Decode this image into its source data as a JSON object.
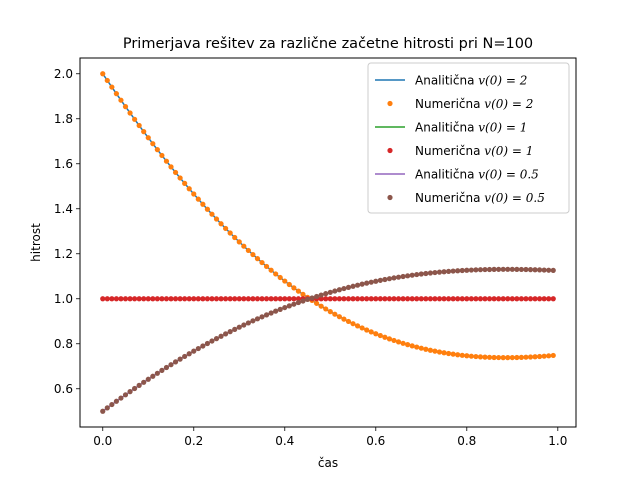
{
  "chart_data": {
    "type": "line",
    "title": "Primerjava rešitev za različne začetne hitrosti pri N=100",
    "xlabel": "čas",
    "ylabel": "hitrost",
    "xlim": [
      -0.05,
      1.04
    ],
    "ylim": [
      0.43,
      2.07
    ],
    "xticks": [
      0.0,
      0.2,
      0.4,
      0.6,
      0.8,
      1.0
    ],
    "xtick_labels": [
      "0.0",
      "0.2",
      "0.4",
      "0.6",
      "0.8",
      "1.0"
    ],
    "yticks": [
      0.6,
      0.8,
      1.0,
      1.2,
      1.4,
      1.6,
      1.8,
      2.0
    ],
    "ytick_labels": [
      "0.6",
      "0.8",
      "1.0",
      "1.2",
      "1.4",
      "1.6",
      "1.8",
      "2.0"
    ],
    "grid": false,
    "legend_position": "top-right",
    "x": {
      "start": 0.0,
      "step": 0.01,
      "count": 100
    },
    "series": [
      {
        "name": "Analitična v(0) = 2",
        "legend_prefix": "Analitična ",
        "legend_math": "v(0) = 2",
        "kind": "line",
        "color": "#1f77b4",
        "v0": 2.0,
        "y": [
          2.0,
          1.9702,
          1.9407,
          1.9115,
          1.8825,
          1.8539,
          1.8256,
          1.7976,
          1.77,
          1.7427,
          1.7157,
          1.6891,
          1.6628,
          1.6369,
          1.6113,
          1.5861,
          1.5613,
          1.5368,
          1.5127,
          1.4889,
          1.4655,
          1.4426,
          1.4199,
          1.3977,
          1.3758,
          1.3543,
          1.3332,
          1.3125,
          1.2922,
          1.2723,
          1.2528,
          1.2336,
          1.2148,
          1.1964,
          1.1784,
          1.1608,
          1.1436,
          1.1268,
          1.1103,
          1.0943,
          1.0786,
          1.0633,
          1.0484,
          1.0339,
          1.0197,
          1.006,
          0.9926,
          0.9796,
          0.967,
          0.9548,
          0.9429,
          0.9314,
          0.9203,
          0.9095,
          0.8992,
          0.8891,
          0.8795,
          0.8702,
          0.8612,
          0.8526,
          0.8444,
          0.8365,
          0.8289,
          0.8217,
          0.8148,
          0.8082,
          0.802,
          0.7961,
          0.7905,
          0.7852,
          0.7802,
          0.7756,
          0.7712,
          0.7672,
          0.7634,
          0.7599,
          0.7567,
          0.7538,
          0.7511,
          0.7487,
          0.7466,
          0.7447,
          0.7431,
          0.7417,
          0.7406,
          0.7397,
          0.739,
          0.7386,
          0.7383,
          0.7383,
          0.7385,
          0.7389,
          0.7394,
          0.7402,
          0.7411,
          0.7422,
          0.7434,
          0.7448,
          0.7463,
          0.748
        ]
      },
      {
        "name": "Numerična v(0) = 2",
        "legend_prefix": "Numerična ",
        "legend_math": "v(0) = 2",
        "kind": "points",
        "color": "#ff7f0e",
        "v0": 2.0,
        "y": [
          2.0,
          1.9702,
          1.9407,
          1.9115,
          1.8825,
          1.8539,
          1.8256,
          1.7976,
          1.77,
          1.7427,
          1.7157,
          1.6891,
          1.6628,
          1.6369,
          1.6113,
          1.5861,
          1.5613,
          1.5368,
          1.5127,
          1.4889,
          1.4655,
          1.4426,
          1.4199,
          1.3977,
          1.3758,
          1.3543,
          1.3332,
          1.3125,
          1.2922,
          1.2723,
          1.2528,
          1.2336,
          1.2148,
          1.1964,
          1.1784,
          1.1608,
          1.1436,
          1.1268,
          1.1103,
          1.0943,
          1.0786,
          1.0633,
          1.0484,
          1.0339,
          1.0197,
          1.006,
          0.9926,
          0.9796,
          0.967,
          0.9548,
          0.9429,
          0.9314,
          0.9203,
          0.9095,
          0.8992,
          0.8891,
          0.8795,
          0.8702,
          0.8612,
          0.8526,
          0.8444,
          0.8365,
          0.8289,
          0.8217,
          0.8148,
          0.8082,
          0.802,
          0.7961,
          0.7905,
          0.7852,
          0.7802,
          0.7756,
          0.7712,
          0.7672,
          0.7634,
          0.7599,
          0.7567,
          0.7538,
          0.7511,
          0.7487,
          0.7466,
          0.7447,
          0.7431,
          0.7417,
          0.7406,
          0.7397,
          0.739,
          0.7386,
          0.7383,
          0.7383,
          0.7385,
          0.7389,
          0.7394,
          0.7402,
          0.7411,
          0.7422,
          0.7434,
          0.7448,
          0.7463,
          0.748
        ]
      },
      {
        "name": "Analitična v(0) = 1",
        "legend_prefix": "Analitična ",
        "legend_math": "v(0) = 1",
        "kind": "line",
        "color": "#2ca02c",
        "v0": 1.0,
        "y": [
          1.0,
          1.0,
          1.0,
          1.0,
          1.0,
          1.0,
          1.0,
          1.0,
          1.0,
          1.0,
          1.0,
          1.0,
          1.0,
          1.0,
          1.0,
          1.0,
          1.0,
          1.0,
          1.0,
          1.0,
          1.0,
          1.0,
          1.0,
          1.0,
          1.0,
          1.0,
          1.0,
          1.0,
          1.0,
          1.0,
          1.0,
          1.0,
          1.0,
          1.0,
          1.0,
          1.0,
          1.0,
          1.0,
          1.0,
          1.0,
          1.0,
          1.0,
          1.0,
          1.0,
          1.0,
          1.0,
          1.0,
          1.0,
          1.0,
          1.0,
          1.0,
          1.0,
          1.0,
          1.0,
          1.0,
          1.0,
          1.0,
          1.0,
          1.0,
          1.0,
          1.0,
          1.0,
          1.0,
          1.0,
          1.0,
          1.0,
          1.0,
          1.0,
          1.0,
          1.0,
          1.0,
          1.0,
          1.0,
          1.0,
          1.0,
          1.0,
          1.0,
          1.0,
          1.0,
          1.0,
          1.0,
          1.0,
          1.0,
          1.0,
          1.0,
          1.0,
          1.0,
          1.0,
          1.0,
          1.0,
          1.0,
          1.0,
          1.0,
          1.0,
          1.0,
          1.0,
          1.0,
          1.0,
          1.0,
          1.0
        ]
      },
      {
        "name": "Numerična v(0) = 1",
        "legend_prefix": "Numerična ",
        "legend_math": "v(0) = 1",
        "kind": "points",
        "color": "#d62728",
        "v0": 1.0,
        "y": [
          1.0,
          1.0,
          1.0,
          1.0,
          1.0,
          1.0,
          1.0,
          1.0,
          1.0,
          1.0,
          1.0,
          1.0,
          1.0,
          1.0,
          1.0,
          1.0,
          1.0,
          1.0,
          1.0,
          1.0,
          1.0,
          1.0,
          1.0,
          1.0,
          1.0,
          1.0,
          1.0,
          1.0,
          1.0,
          1.0,
          1.0,
          1.0,
          1.0,
          1.0,
          1.0,
          1.0,
          1.0,
          1.0,
          1.0,
          1.0,
          1.0,
          1.0,
          1.0,
          1.0,
          1.0,
          1.0,
          1.0,
          1.0,
          1.0,
          1.0,
          1.0,
          1.0,
          1.0,
          1.0,
          1.0,
          1.0,
          1.0,
          1.0,
          1.0,
          1.0,
          1.0,
          1.0,
          1.0,
          1.0,
          1.0,
          1.0,
          1.0,
          1.0,
          1.0,
          1.0,
          1.0,
          1.0,
          1.0,
          1.0,
          1.0,
          1.0,
          1.0,
          1.0,
          1.0,
          1.0,
          1.0,
          1.0,
          1.0,
          1.0,
          1.0,
          1.0,
          1.0,
          1.0,
          1.0,
          1.0,
          1.0,
          1.0,
          1.0,
          1.0,
          1.0,
          1.0,
          1.0,
          1.0,
          1.0,
          1.0
        ]
      },
      {
        "name": "Analitična v(0) = 0.5",
        "legend_prefix": "Analitična ",
        "legend_math": "v(0) = 0.5",
        "kind": "line",
        "color": "#9467bd",
        "v0": 0.5,
        "y": [
          0.5,
          0.5149,
          0.5297,
          0.5443,
          0.5587,
          0.5731,
          0.5872,
          0.6012,
          0.615,
          0.6287,
          0.6421,
          0.6554,
          0.6686,
          0.6816,
          0.6944,
          0.7069,
          0.7194,
          0.7316,
          0.7437,
          0.7555,
          0.7672,
          0.7787,
          0.79,
          0.8012,
          0.8121,
          0.8229,
          0.8334,
          0.8438,
          0.8539,
          0.8639,
          0.8736,
          0.8832,
          0.8926,
          0.9018,
          0.9108,
          0.9196,
          0.9282,
          0.9366,
          0.9449,
          0.9529,
          0.9607,
          0.9683,
          0.9758,
          0.9831,
          0.9901,
          0.997,
          1.0037,
          1.0102,
          1.0165,
          1.0226,
          1.0285,
          1.0343,
          1.0399,
          1.0452,
          1.0504,
          1.0554,
          1.0603,
          1.0649,
          1.0694,
          1.0737,
          1.0778,
          1.0818,
          1.0855,
          1.0891,
          1.0926,
          1.0959,
          1.099,
          1.1019,
          1.1047,
          1.1074,
          1.1099,
          1.1122,
          1.1144,
          1.1164,
          1.1183,
          1.1201,
          1.1217,
          1.1231,
          1.1244,
          1.1256,
          1.1267,
          1.1276,
          1.1285,
          1.1291,
          1.1297,
          1.1301,
          1.1305,
          1.1307,
          1.1308,
          1.1309,
          1.1308,
          1.1306,
          1.1303,
          1.1299,
          1.1294,
          1.1289,
          1.1283,
          1.1276,
          1.1268,
          1.126
        ]
      },
      {
        "name": "Numerična v(0) = 0.5",
        "legend_prefix": "Numerična ",
        "legend_math": "v(0) = 0.5",
        "kind": "points",
        "color": "#8c564b",
        "v0": 0.5,
        "y": [
          0.5,
          0.5149,
          0.5297,
          0.5443,
          0.5587,
          0.5731,
          0.5872,
          0.6012,
          0.615,
          0.6287,
          0.6421,
          0.6554,
          0.6686,
          0.6816,
          0.6944,
          0.7069,
          0.7194,
          0.7316,
          0.7437,
          0.7555,
          0.7672,
          0.7787,
          0.79,
          0.8012,
          0.8121,
          0.8229,
          0.8334,
          0.8438,
          0.8539,
          0.8639,
          0.8736,
          0.8832,
          0.8926,
          0.9018,
          0.9108,
          0.9196,
          0.9282,
          0.9366,
          0.9449,
          0.9529,
          0.9607,
          0.9683,
          0.9758,
          0.9831,
          0.9901,
          0.997,
          1.0037,
          1.0102,
          1.0165,
          1.0226,
          1.0285,
          1.0343,
          1.0399,
          1.0452,
          1.0504,
          1.0554,
          1.0603,
          1.0649,
          1.0694,
          1.0737,
          1.0778,
          1.0818,
          1.0855,
          1.0891,
          1.0926,
          1.0959,
          1.099,
          1.1019,
          1.1047,
          1.1074,
          1.1099,
          1.1122,
          1.1144,
          1.1164,
          1.1183,
          1.1201,
          1.1217,
          1.1231,
          1.1244,
          1.1256,
          1.1267,
          1.1276,
          1.1285,
          1.1291,
          1.1297,
          1.1301,
          1.1305,
          1.1307,
          1.1308,
          1.1309,
          1.1308,
          1.1306,
          1.1303,
          1.1299,
          1.1294,
          1.1289,
          1.1283,
          1.1276,
          1.1268,
          1.126
        ]
      }
    ]
  }
}
